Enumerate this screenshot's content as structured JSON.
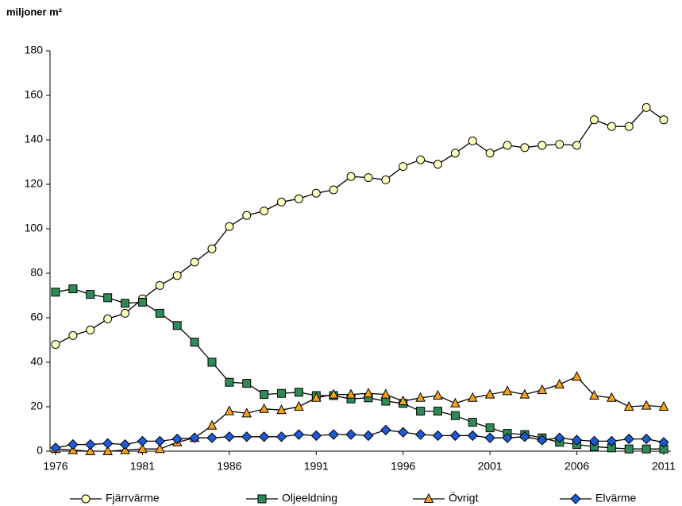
{
  "chart_data": {
    "type": "line",
    "y_label": "miljoner m²",
    "x": [
      1976,
      1977,
      1978,
      1979,
      1980,
      1981,
      1982,
      1983,
      1984,
      1985,
      1986,
      1987,
      1988,
      1989,
      1990,
      1991,
      1992,
      1993,
      1994,
      1995,
      1996,
      1997,
      1998,
      1999,
      2000,
      2001,
      2002,
      2003,
      2004,
      2005,
      2006,
      2007,
      2008,
      2009,
      2010,
      2011
    ],
    "xlim": [
      1976,
      2011
    ],
    "xticks": [
      1976,
      1981,
      1986,
      1991,
      1996,
      2001,
      2006,
      2011
    ],
    "ylim": [
      0,
      180
    ],
    "yticks": [
      0,
      20,
      40,
      60,
      80,
      100,
      120,
      140,
      160,
      180
    ],
    "grid": false,
    "legend": "bottom",
    "series": [
      {
        "name": "Fjärrvärme",
        "color": "#ffffc0",
        "marker": "circle",
        "values": [
          48,
          52,
          54.5,
          59.5,
          62,
          68.5,
          74.5,
          79,
          85,
          91,
          101,
          106,
          108,
          112,
          113.5,
          116,
          117.5,
          123.5,
          123,
          122,
          128,
          131,
          129,
          134,
          139.5,
          134,
          137.5,
          136.5,
          137.5,
          138,
          137.5,
          149,
          146,
          146,
          154.5,
          149
        ]
      },
      {
        "name": "Oljeeldning",
        "color": "#2e8b57",
        "marker": "square",
        "values": [
          71.5,
          73,
          70.5,
          69,
          66.5,
          67,
          62,
          56.5,
          49,
          40,
          31,
          30.5,
          25.5,
          26,
          26.5,
          25,
          25,
          23.5,
          24,
          22.5,
          21.5,
          18,
          18,
          16,
          13,
          10.5,
          8,
          7.5,
          6,
          4,
          3,
          2,
          1.5,
          1,
          1,
          1
        ]
      },
      {
        "name": "Övrigt",
        "color": "#f5a11e",
        "marker": "triangle",
        "values": [
          1,
          0.5,
          0,
          0,
          0.5,
          1,
          1,
          4,
          6,
          11.5,
          18,
          17,
          19,
          18.5,
          20,
          24,
          25.5,
          25.5,
          26,
          25.5,
          22.5,
          24,
          25,
          21.5,
          24,
          25.5,
          27,
          25.5,
          27.5,
          30,
          33.5,
          25,
          24,
          20,
          20.5,
          20
        ]
      },
      {
        "name": "Elvärme",
        "color": "#1e5ad6",
        "marker": "diamond",
        "values": [
          1.5,
          3,
          3,
          3.5,
          3,
          4.5,
          4.5,
          5.5,
          6,
          6,
          6.5,
          6.5,
          6.5,
          6.5,
          7.5,
          7,
          7.5,
          7.5,
          7,
          9.5,
          8.5,
          7.5,
          7,
          7,
          7,
          6,
          6,
          6.5,
          5,
          6,
          5,
          4.5,
          4.5,
          5.5,
          5.5,
          4
        ]
      }
    ]
  }
}
